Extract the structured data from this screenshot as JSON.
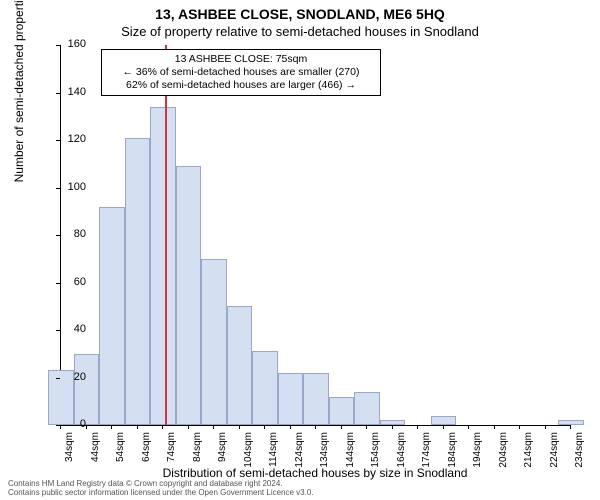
{
  "title": "13, ASHBEE CLOSE, SNODLAND, ME6 5HQ",
  "subtitle": "Size of property relative to semi-detached houses in Snodland",
  "ylabel": "Number of semi-detached properties",
  "xlabel": "Distribution of semi-detached houses by size in Snodland",
  "footer_line1": "Contains HM Land Registry data © Crown copyright and database right 2024.",
  "footer_line2": "Contains public sector information licensed under the Open Government Licence v3.0.",
  "chart": {
    "type": "histogram",
    "ylim": [
      0,
      160
    ],
    "ytick_step": 20,
    "xticks": [
      34,
      44,
      54,
      64,
      74,
      84,
      94,
      104,
      114,
      124,
      134,
      144,
      154,
      164,
      174,
      184,
      194,
      204,
      214,
      224,
      234
    ],
    "xtick_suffix": "sqm",
    "bar_fill": "#d4dff2",
    "bar_border": "#9aa8c7",
    "background_color": "#ffffff",
    "axis_color": "#000000",
    "bars": [
      {
        "x": 34,
        "value": 23
      },
      {
        "x": 44,
        "value": 30
      },
      {
        "x": 54,
        "value": 92
      },
      {
        "x": 64,
        "value": 121
      },
      {
        "x": 74,
        "value": 134
      },
      {
        "x": 84,
        "value": 109
      },
      {
        "x": 94,
        "value": 70
      },
      {
        "x": 104,
        "value": 50
      },
      {
        "x": 114,
        "value": 31
      },
      {
        "x": 124,
        "value": 22
      },
      {
        "x": 134,
        "value": 22
      },
      {
        "x": 144,
        "value": 12
      },
      {
        "x": 154,
        "value": 14
      },
      {
        "x": 164,
        "value": 2
      },
      {
        "x": 174,
        "value": 0
      },
      {
        "x": 184,
        "value": 4
      },
      {
        "x": 194,
        "value": 0
      },
      {
        "x": 204,
        "value": 0
      },
      {
        "x": 214,
        "value": 0
      },
      {
        "x": 224,
        "value": 0
      },
      {
        "x": 234,
        "value": 2
      }
    ],
    "marker": {
      "x": 75,
      "color": "#cc3344"
    },
    "annotation": {
      "line1": "13 ASHBEE CLOSE: 75sqm",
      "line2": "← 36% of semi-detached houses are smaller (270)",
      "line3": "62% of semi-detached houses are larger (466) →",
      "border_color": "#000000",
      "background_color": "#ffffff",
      "fontsize": 10.5
    },
    "title_fontsize": 14,
    "subtitle_fontsize": 13,
    "label_fontsize": 12,
    "tick_fontsize": 11,
    "xtick_fontsize": 10
  }
}
